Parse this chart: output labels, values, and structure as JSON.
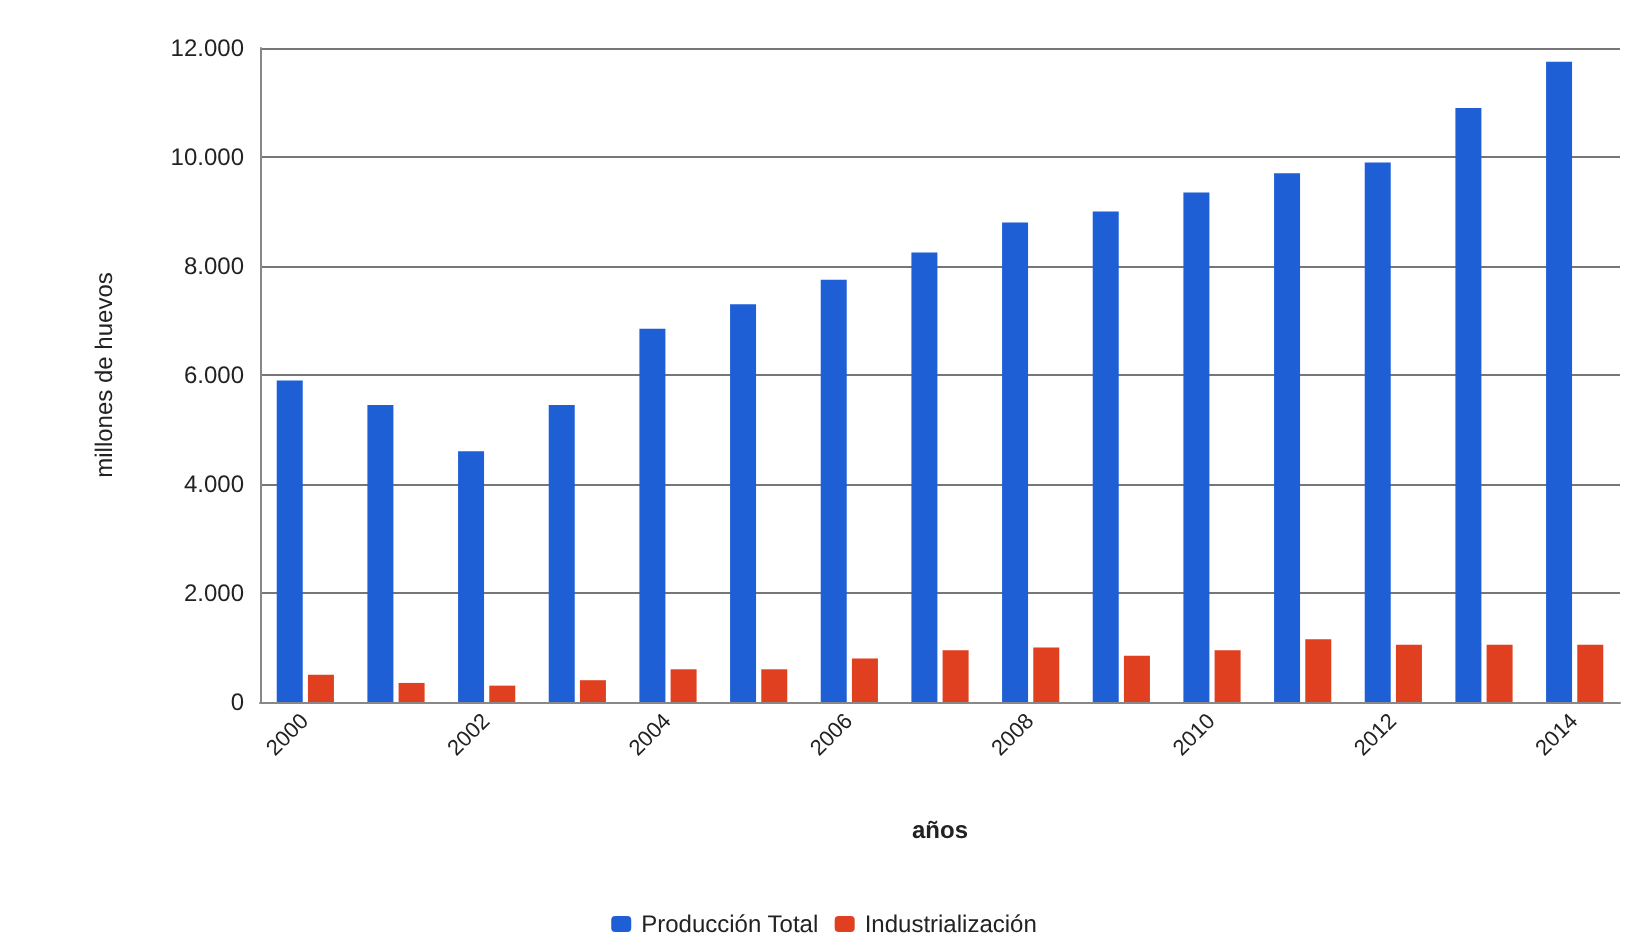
{
  "chart_data": {
    "type": "bar",
    "xlabel": "años",
    "ylabel": "millones de huevos",
    "categories": [
      "2000",
      null,
      "2002",
      null,
      "2004",
      null,
      "2006",
      null,
      "2008",
      null,
      "2010",
      null,
      "2012",
      null,
      "2014"
    ],
    "series": [
      {
        "name": "Producción Total",
        "color": "#1f5fd6",
        "values": [
          5900,
          5450,
          4600,
          5450,
          6850,
          7300,
          7750,
          8250,
          8800,
          9000,
          9350,
          9700,
          9900,
          10900,
          11750
        ]
      },
      {
        "name": "Industrialización",
        "color": "#e0401f",
        "values": [
          500,
          350,
          300,
          400,
          600,
          600,
          800,
          950,
          1000,
          850,
          950,
          1150,
          1050,
          1050,
          1050
        ]
      }
    ],
    "ylim": [
      0,
      12000
    ],
    "yticks": [
      {
        "value": 0,
        "label": "0"
      },
      {
        "value": 2000,
        "label": "2.000"
      },
      {
        "value": 4000,
        "label": "4.000"
      },
      {
        "value": 6000,
        "label": "6.000"
      },
      {
        "value": 8000,
        "label": "8.000"
      },
      {
        "value": 10000,
        "label": "10.000"
      },
      {
        "value": 12000,
        "label": "12.000"
      }
    ],
    "grid": true,
    "legend": "bottom"
  }
}
